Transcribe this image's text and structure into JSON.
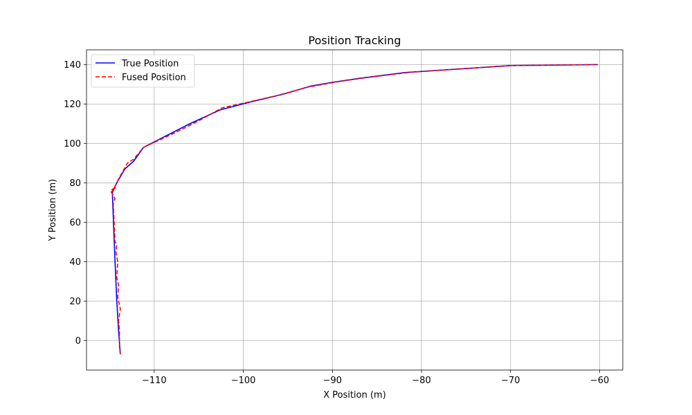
{
  "chart_data": {
    "type": "line",
    "title": "Position Tracking",
    "xlabel": "X Position (m)",
    "ylabel": "Y Position (m)",
    "xlim": [
      -117.6,
      -57.4
    ],
    "ylim": [
      -15,
      147.5
    ],
    "xticks": [
      -110,
      -100,
      -90,
      -80,
      -70,
      -60
    ],
    "xtick_labels": [
      "−110",
      "−100",
      "−90",
      "−80",
      "−70",
      "−60"
    ],
    "yticks": [
      0,
      20,
      40,
      60,
      80,
      100,
      120,
      140
    ],
    "ytick_labels": [
      "0",
      "20",
      "40",
      "60",
      "80",
      "100",
      "120",
      "140"
    ],
    "grid": true,
    "legend_position": "top-left",
    "series": [
      {
        "name": "True Position",
        "color": "#0000ff",
        "dash": "solid",
        "x": [
          -113.8,
          -114.0,
          -114.2,
          -114.4,
          -114.7,
          -114.2,
          -113.3,
          -112.3,
          -111.2,
          -108.6,
          -106.0,
          -102.6,
          -99.2,
          -95.5,
          -92.5,
          -90.0,
          -87.0,
          -81.8,
          -75.0,
          -70.0,
          -60.2
        ],
        "y": [
          -7,
          5,
          20,
          40,
          75,
          80,
          87,
          91,
          98,
          104,
          110,
          117,
          121,
          125,
          129,
          131,
          133,
          136,
          138,
          139.5,
          140
        ]
      },
      {
        "name": "Fused Position",
        "color": "#ff0000",
        "dash": "dashed",
        "x": [
          -113.8,
          -113.9,
          -113.9,
          -114.0,
          -113.8,
          -114.1,
          -114.0,
          -114.2,
          -114.1,
          -114.3,
          -114.2,
          -114.4,
          -114.6,
          -114.4,
          -114.9,
          -114.3,
          -114.8,
          -114.2,
          -114.0,
          -113.5,
          -113.0,
          -112.3,
          -111.2,
          -108.8,
          -106.5,
          -104.8,
          -102.4,
          -99.4,
          -96.0,
          -92.8,
          -89.8,
          -86.8,
          -81.5,
          -75.0,
          -70.0,
          -60.2
        ],
        "y": [
          -7,
          -3,
          5,
          10,
          16,
          22,
          28,
          32,
          40,
          45,
          49,
          50,
          70,
          72,
          76,
          78,
          75,
          80,
          82,
          86,
          90,
          92,
          98,
          103,
          108,
          112,
          118,
          121,
          124.5,
          128.5,
          131,
          133,
          136,
          138,
          139.5,
          140
        ]
      }
    ]
  }
}
